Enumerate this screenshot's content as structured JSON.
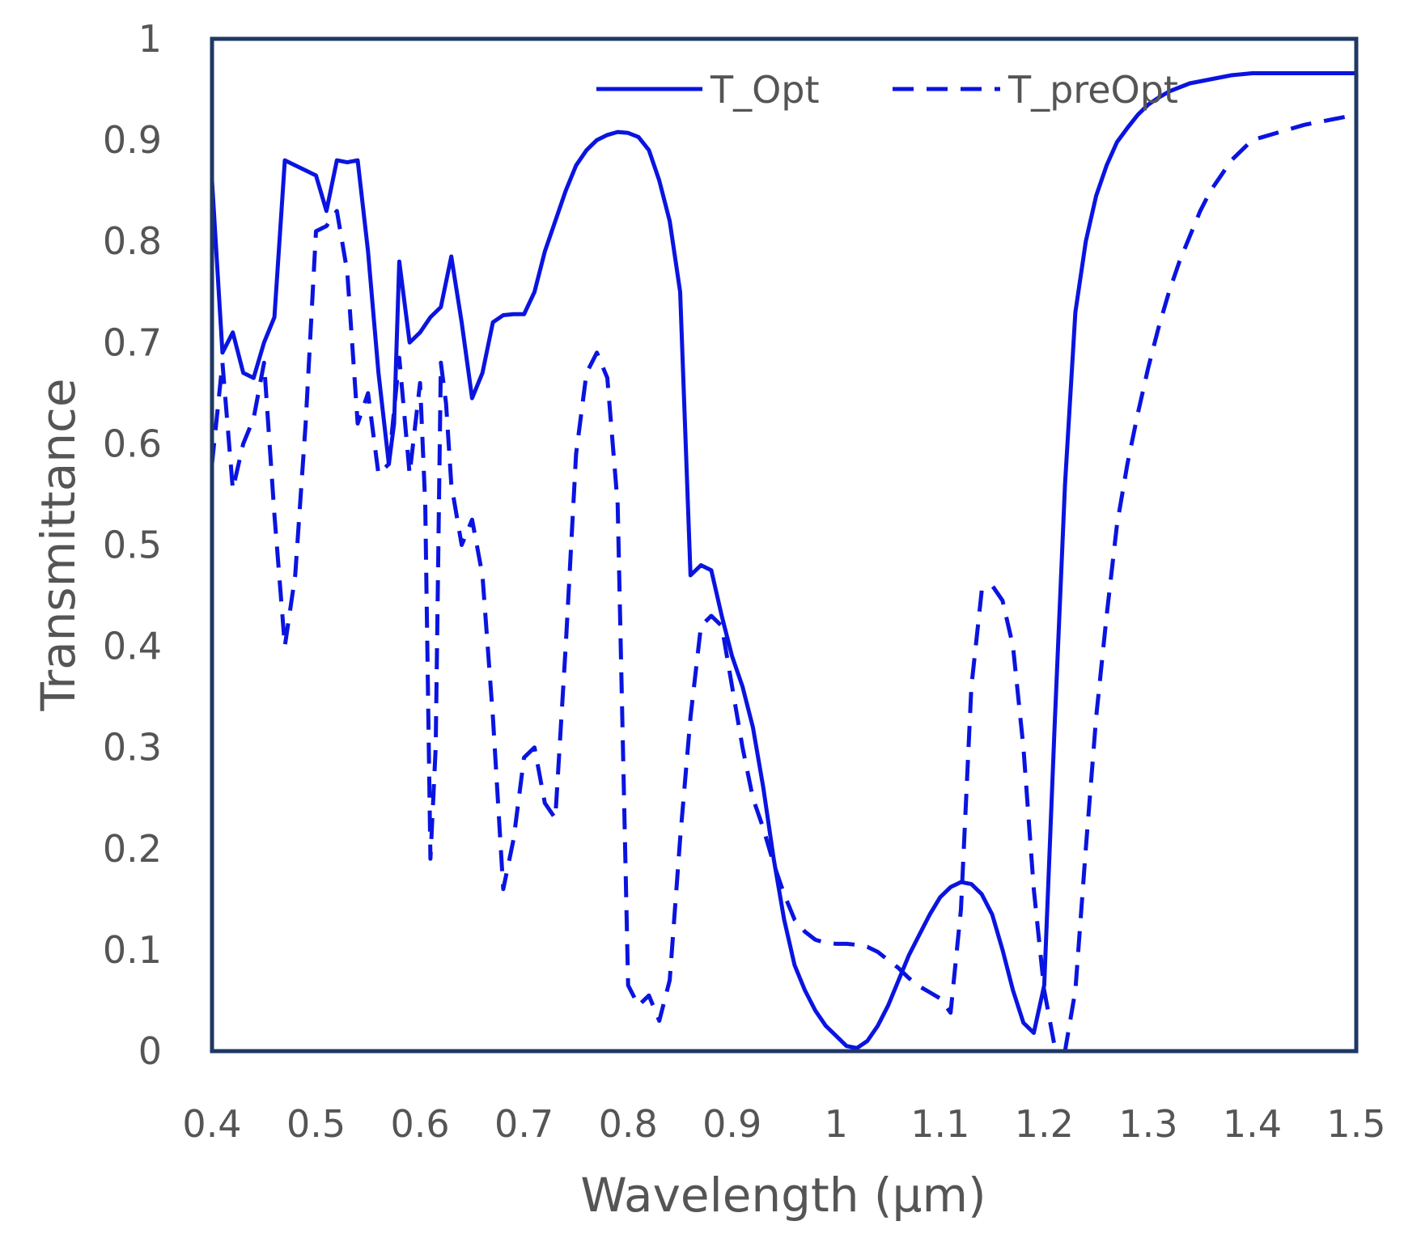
{
  "chart_data": {
    "type": "line",
    "xlabel": "Wavelength (μm)",
    "ylabel": "Transmittance",
    "xlim": [
      0.4,
      1.5
    ],
    "ylim": [
      0,
      1
    ],
    "x_ticks": [
      "0.4",
      "0.5",
      "0.6",
      "0.7",
      "0.8",
      "0.9",
      "1",
      "1.1",
      "1.2",
      "1.3",
      "1.4",
      "1.5"
    ],
    "y_ticks": [
      "0",
      "0.1",
      "0.2",
      "0.3",
      "0.4",
      "0.5",
      "0.6",
      "0.7",
      "0.8",
      "0.9",
      "1"
    ],
    "grid": false,
    "legend_position": "top-right",
    "line_color": "#0a14e0",
    "frame_color": "#1f3864",
    "series": [
      {
        "name": "T_Opt",
        "style": "solid",
        "points": [
          [
            0.4,
            0.86
          ],
          [
            0.41,
            0.69
          ],
          [
            0.42,
            0.71
          ],
          [
            0.43,
            0.67
          ],
          [
            0.44,
            0.665
          ],
          [
            0.45,
            0.7
          ],
          [
            0.46,
            0.725
          ],
          [
            0.47,
            0.88
          ],
          [
            0.48,
            0.875
          ],
          [
            0.49,
            0.87
          ],
          [
            0.5,
            0.865
          ],
          [
            0.51,
            0.83
          ],
          [
            0.52,
            0.88
          ],
          [
            0.53,
            0.878
          ],
          [
            0.54,
            0.88
          ],
          [
            0.55,
            0.79
          ],
          [
            0.56,
            0.67
          ],
          [
            0.57,
            0.58
          ],
          [
            0.575,
            0.62
          ],
          [
            0.58,
            0.78
          ],
          [
            0.59,
            0.7
          ],
          [
            0.6,
            0.71
          ],
          [
            0.61,
            0.725
          ],
          [
            0.62,
            0.735
          ],
          [
            0.63,
            0.785
          ],
          [
            0.64,
            0.72
          ],
          [
            0.65,
            0.645
          ],
          [
            0.66,
            0.67
          ],
          [
            0.67,
            0.72
          ],
          [
            0.68,
            0.727
          ],
          [
            0.69,
            0.728
          ],
          [
            0.7,
            0.728
          ],
          [
            0.71,
            0.75
          ],
          [
            0.72,
            0.79
          ],
          [
            0.73,
            0.82
          ],
          [
            0.74,
            0.85
          ],
          [
            0.75,
            0.875
          ],
          [
            0.76,
            0.89
          ],
          [
            0.77,
            0.9
          ],
          [
            0.78,
            0.905
          ],
          [
            0.79,
            0.908
          ],
          [
            0.8,
            0.907
          ],
          [
            0.81,
            0.903
          ],
          [
            0.82,
            0.89
          ],
          [
            0.83,
            0.86
          ],
          [
            0.84,
            0.82
          ],
          [
            0.85,
            0.75
          ],
          [
            0.86,
            0.47
          ],
          [
            0.87,
            0.48
          ],
          [
            0.88,
            0.475
          ],
          [
            0.89,
            0.43
          ],
          [
            0.9,
            0.39
          ],
          [
            0.91,
            0.36
          ],
          [
            0.92,
            0.32
          ],
          [
            0.93,
            0.26
          ],
          [
            0.94,
            0.19
          ],
          [
            0.95,
            0.13
          ],
          [
            0.96,
            0.085
          ],
          [
            0.97,
            0.06
          ],
          [
            0.98,
            0.04
          ],
          [
            0.99,
            0.025
          ],
          [
            1.0,
            0.015
          ],
          [
            1.01,
            0.005
          ],
          [
            1.02,
            0.003
          ],
          [
            1.03,
            0.01
          ],
          [
            1.04,
            0.025
          ],
          [
            1.05,
            0.045
          ],
          [
            1.06,
            0.07
          ],
          [
            1.07,
            0.095
          ],
          [
            1.08,
            0.115
          ],
          [
            1.09,
            0.135
          ],
          [
            1.1,
            0.152
          ],
          [
            1.11,
            0.162
          ],
          [
            1.12,
            0.167
          ],
          [
            1.13,
            0.165
          ],
          [
            1.14,
            0.155
          ],
          [
            1.15,
            0.135
          ],
          [
            1.16,
            0.1
          ],
          [
            1.17,
            0.06
          ],
          [
            1.18,
            0.028
          ],
          [
            1.19,
            0.018
          ],
          [
            1.2,
            0.065
          ],
          [
            1.21,
            0.32
          ],
          [
            1.22,
            0.56
          ],
          [
            1.23,
            0.73
          ],
          [
            1.24,
            0.8
          ],
          [
            1.25,
            0.845
          ],
          [
            1.26,
            0.875
          ],
          [
            1.27,
            0.898
          ],
          [
            1.28,
            0.912
          ],
          [
            1.29,
            0.925
          ],
          [
            1.3,
            0.935
          ],
          [
            1.31,
            0.942
          ],
          [
            1.32,
            0.948
          ],
          [
            1.33,
            0.952
          ],
          [
            1.34,
            0.956
          ],
          [
            1.35,
            0.958
          ],
          [
            1.36,
            0.96
          ],
          [
            1.37,
            0.962
          ],
          [
            1.38,
            0.964
          ],
          [
            1.39,
            0.965
          ],
          [
            1.4,
            0.966
          ],
          [
            1.45,
            0.966
          ],
          [
            1.5,
            0.966
          ]
        ]
      },
      {
        "name": "T_preOpt",
        "style": "dashed",
        "points": [
          [
            0.4,
            0.58
          ],
          [
            0.41,
            0.68
          ],
          [
            0.42,
            0.555
          ],
          [
            0.43,
            0.6
          ],
          [
            0.44,
            0.625
          ],
          [
            0.45,
            0.68
          ],
          [
            0.46,
            0.53
          ],
          [
            0.47,
            0.4
          ],
          [
            0.48,
            0.47
          ],
          [
            0.49,
            0.62
          ],
          [
            0.5,
            0.81
          ],
          [
            0.51,
            0.815
          ],
          [
            0.52,
            0.83
          ],
          [
            0.53,
            0.77
          ],
          [
            0.54,
            0.62
          ],
          [
            0.55,
            0.65
          ],
          [
            0.56,
            0.57
          ],
          [
            0.57,
            0.58
          ],
          [
            0.58,
            0.685
          ],
          [
            0.59,
            0.57
          ],
          [
            0.6,
            0.66
          ],
          [
            0.605,
            0.54
          ],
          [
            0.61,
            0.19
          ],
          [
            0.615,
            0.3
          ],
          [
            0.62,
            0.68
          ],
          [
            0.625,
            0.64
          ],
          [
            0.63,
            0.56
          ],
          [
            0.64,
            0.5
          ],
          [
            0.65,
            0.525
          ],
          [
            0.66,
            0.47
          ],
          [
            0.67,
            0.33
          ],
          [
            0.68,
            0.16
          ],
          [
            0.69,
            0.21
          ],
          [
            0.7,
            0.29
          ],
          [
            0.71,
            0.3
          ],
          [
            0.72,
            0.245
          ],
          [
            0.73,
            0.23
          ],
          [
            0.74,
            0.4
          ],
          [
            0.75,
            0.59
          ],
          [
            0.76,
            0.67
          ],
          [
            0.77,
            0.69
          ],
          [
            0.78,
            0.665
          ],
          [
            0.79,
            0.54
          ],
          [
            0.795,
            0.3
          ],
          [
            0.8,
            0.065
          ],
          [
            0.81,
            0.045
          ],
          [
            0.82,
            0.055
          ],
          [
            0.83,
            0.03
          ],
          [
            0.84,
            0.07
          ],
          [
            0.85,
            0.21
          ],
          [
            0.86,
            0.33
          ],
          [
            0.87,
            0.42
          ],
          [
            0.88,
            0.43
          ],
          [
            0.89,
            0.42
          ],
          [
            0.9,
            0.36
          ],
          [
            0.91,
            0.3
          ],
          [
            0.92,
            0.25
          ],
          [
            0.93,
            0.22
          ],
          [
            0.94,
            0.185
          ],
          [
            0.95,
            0.155
          ],
          [
            0.96,
            0.13
          ],
          [
            0.97,
            0.118
          ],
          [
            0.98,
            0.11
          ],
          [
            0.99,
            0.107
          ],
          [
            1.0,
            0.106
          ],
          [
            1.01,
            0.106
          ],
          [
            1.02,
            0.105
          ],
          [
            1.03,
            0.103
          ],
          [
            1.04,
            0.098
          ],
          [
            1.05,
            0.09
          ],
          [
            1.06,
            0.082
          ],
          [
            1.07,
            0.072
          ],
          [
            1.08,
            0.064
          ],
          [
            1.09,
            0.058
          ],
          [
            1.1,
            0.052
          ],
          [
            1.11,
            0.038
          ],
          [
            1.12,
            0.14
          ],
          [
            1.13,
            0.36
          ],
          [
            1.14,
            0.455
          ],
          [
            1.15,
            0.46
          ],
          [
            1.16,
            0.445
          ],
          [
            1.17,
            0.4
          ],
          [
            1.18,
            0.3
          ],
          [
            1.19,
            0.16
          ],
          [
            1.2,
            0.06
          ],
          [
            1.21,
            0.005
          ],
          [
            1.22,
            0.0
          ],
          [
            1.23,
            0.06
          ],
          [
            1.24,
            0.2
          ],
          [
            1.25,
            0.33
          ],
          [
            1.26,
            0.43
          ],
          [
            1.27,
            0.52
          ],
          [
            1.28,
            0.58
          ],
          [
            1.29,
            0.63
          ],
          [
            1.3,
            0.675
          ],
          [
            1.31,
            0.715
          ],
          [
            1.32,
            0.75
          ],
          [
            1.33,
            0.78
          ],
          [
            1.34,
            0.805
          ],
          [
            1.35,
            0.83
          ],
          [
            1.36,
            0.85
          ],
          [
            1.37,
            0.865
          ],
          [
            1.38,
            0.88
          ],
          [
            1.39,
            0.89
          ],
          [
            1.4,
            0.9
          ],
          [
            1.45,
            0.915
          ],
          [
            1.5,
            0.925
          ]
        ]
      }
    ]
  }
}
